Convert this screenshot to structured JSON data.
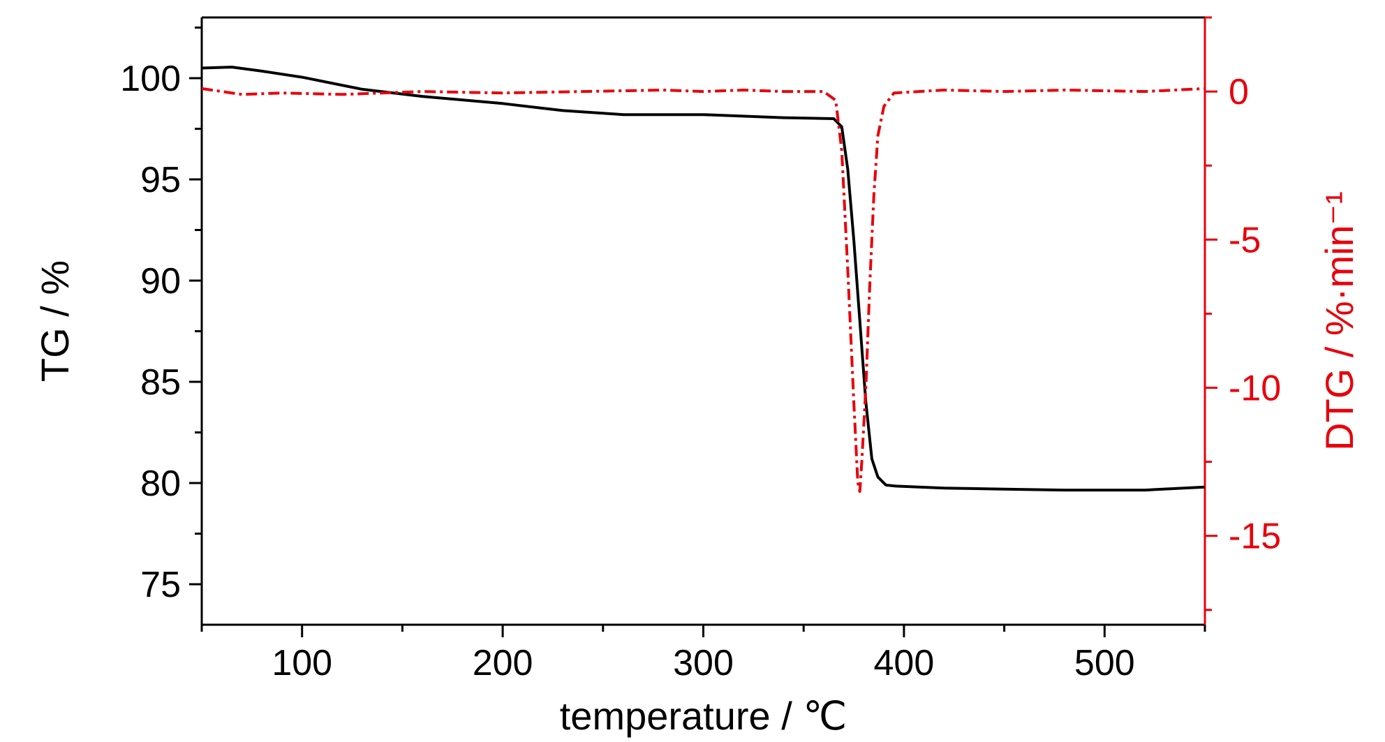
{
  "chart_data": {
    "type": "line",
    "title": "",
    "xlabel": "temperature / ℃",
    "ylabel": "TG / %",
    "y2label": "DTG / %·min⁻¹",
    "xlim": [
      50,
      550
    ],
    "ylim": [
      73,
      103
    ],
    "y2lim": [
      -18,
      2.5
    ],
    "x_ticks": [
      100,
      200,
      300,
      400,
      500
    ],
    "y_ticks": [
      75,
      80,
      85,
      90,
      95,
      100
    ],
    "y2_ticks": [
      0,
      -5,
      -10,
      -15
    ],
    "grid": false,
    "legend": "none",
    "colors": {
      "tg": "#000000",
      "dtg": "#e8000b"
    },
    "series": [
      {
        "axis": "left",
        "style": "solid",
        "x": [
          50,
          65,
          80,
          100,
          130,
          160,
          200,
          230,
          260,
          300,
          340,
          365,
          369,
          372,
          375,
          378,
          381,
          384,
          387,
          391,
          396,
          420,
          450,
          480,
          520,
          550
        ],
        "y": [
          100.5,
          100.55,
          100.35,
          100.05,
          99.45,
          99.1,
          98.75,
          98.4,
          98.2,
          98.2,
          98.05,
          98.0,
          97.6,
          95.5,
          92.0,
          88.0,
          84.0,
          81.2,
          80.3,
          79.9,
          79.85,
          79.75,
          79.7,
          79.65,
          79.65,
          79.8
        ]
      },
      {
        "axis": "right",
        "style": "dash-dot",
        "x": [
          50,
          70,
          90,
          120,
          160,
          200,
          240,
          280,
          300,
          320,
          340,
          360,
          366,
          369,
          372,
          375,
          377,
          378,
          379,
          381,
          383,
          385,
          387,
          390,
          395,
          420,
          450,
          480,
          520,
          550
        ],
        "y": [
          0.1,
          -0.1,
          -0.05,
          -0.1,
          0.0,
          -0.05,
          0.0,
          0.05,
          0.0,
          0.05,
          0.0,
          0.0,
          -0.3,
          -2.0,
          -6.0,
          -10.5,
          -13.2,
          -13.5,
          -12.5,
          -10.0,
          -6.5,
          -3.5,
          -1.5,
          -0.5,
          -0.05,
          0.05,
          0.0,
          0.05,
          0.0,
          0.1
        ]
      }
    ]
  }
}
